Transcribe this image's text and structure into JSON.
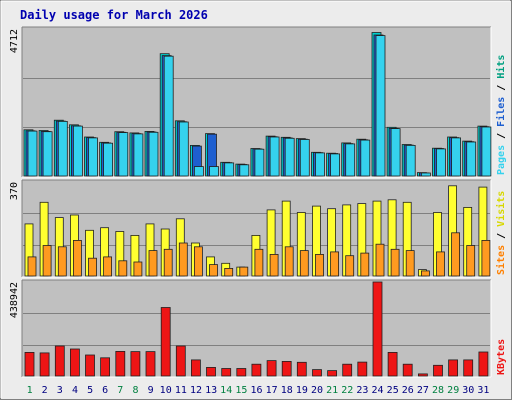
{
  "title": "Daily usage for March 2026",
  "colors": {
    "background": "#ececec",
    "panel": "#c0c0c0",
    "title": "#0000b0",
    "hits": "#00cfcf",
    "files": "#1e5fd0",
    "pages": "#35d2ee",
    "visits": "#ffff30",
    "sites": "#ff9a20",
    "kbytes": "#ee1515",
    "weekday_label": "#000080",
    "weekend_label": "#008040"
  },
  "chart_data": {
    "type": "bar",
    "title": "Daily usage for March 2026",
    "categories": [
      "1",
      "2",
      "3",
      "4",
      "5",
      "6",
      "7",
      "8",
      "9",
      "10",
      "11",
      "12",
      "13",
      "14",
      "15",
      "16",
      "17",
      "18",
      "19",
      "20",
      "21",
      "22",
      "23",
      "24",
      "25",
      "26",
      "27",
      "28",
      "29",
      "30",
      "31"
    ],
    "weekend_days": [
      "1",
      "7",
      "8",
      "14",
      "15",
      "21",
      "22",
      "28",
      "29"
    ],
    "panels": [
      {
        "name": "hits-files-pages",
        "max_label": "4712",
        "ylim": [
          0,
          4712
        ],
        "grid": true,
        "legend": [
          {
            "text": "Pages",
            "color": "#35d2ee"
          },
          {
            "text": "Files",
            "color": "#1e5fd0"
          },
          {
            "text": "Hits",
            "color": "#00a080"
          }
        ],
        "series": [
          {
            "name": "Hits",
            "values": [
              1480,
              1460,
              1790,
              1640,
              1250,
              1080,
              1420,
              1380,
              1430,
              3920,
              1770,
              980,
              1360,
              440,
              380,
              880,
              1280,
              1240,
              1200,
              760,
              730,
              1060,
              1180,
              4600,
              1560,
              1010,
              110,
              890,
              1250,
              1120,
              1600
            ]
          },
          {
            "name": "Files",
            "values": [
              1450,
              1430,
              1760,
              1610,
              1230,
              1060,
              1400,
              1360,
              1410,
              3860,
              1740,
              960,
              1340,
              430,
              370,
              870,
              1260,
              1220,
              1180,
              750,
              720,
              1040,
              1160,
              4520,
              1530,
              990,
              100,
              880,
              1230,
              1100,
              1580
            ]
          },
          {
            "name": "Pages",
            "values": [
              1440,
              1420,
              1750,
              1600,
              1220,
              1050,
              1390,
              1350,
              1400,
              3840,
              1730,
              300,
              300,
              420,
              360,
              860,
              1250,
              1210,
              1170,
              740,
              710,
              1030,
              1150,
              4500,
              1520,
              980,
              95,
              870,
              1220,
              1090,
              1570
            ]
          }
        ]
      },
      {
        "name": "visits-sites",
        "max_label": "370",
        "ylim": [
          0,
          370
        ],
        "grid": true,
        "legend": [
          {
            "text": "Sites",
            "color": "#ff8000"
          },
          {
            "text": "Visits",
            "color": "#d8d800"
          }
        ],
        "series": [
          {
            "name": "Visits",
            "values": [
              205,
              290,
              230,
              240,
              180,
              190,
              175,
              160,
              205,
              185,
              225,
              130,
              75,
              50,
              35,
              160,
              260,
              295,
              250,
              275,
              265,
              280,
              285,
              295,
              300,
              290,
              25,
              250,
              355,
              270,
              350
            ]
          },
          {
            "name": "Sites",
            "values": [
              75,
              120,
              115,
              140,
              70,
              75,
              60,
              55,
              100,
              105,
              130,
              115,
              45,
              30,
              35,
              105,
              85,
              115,
              100,
              85,
              95,
              80,
              90,
              125,
              105,
              100,
              20,
              95,
              170,
              120,
              140
            ]
          }
        ]
      },
      {
        "name": "kbytes",
        "max_label": "438942",
        "ylim": [
          0,
          438942
        ],
        "grid": true,
        "legend": [
          {
            "text": "KBytes",
            "color": "#ee1515"
          }
        ],
        "series": [
          {
            "name": "KBytes",
            "values": [
              110000,
              108000,
              140000,
              126000,
              98000,
              85000,
              115000,
              114000,
              114000,
              320000,
              140000,
              75000,
              40000,
              35000,
              35000,
              55000,
              72000,
              68000,
              64000,
              30000,
              25000,
              55000,
              65000,
              438942,
              110000,
              55000,
              10000,
              50000,
              75000,
              75000,
              112000
            ]
          }
        ]
      }
    ]
  }
}
